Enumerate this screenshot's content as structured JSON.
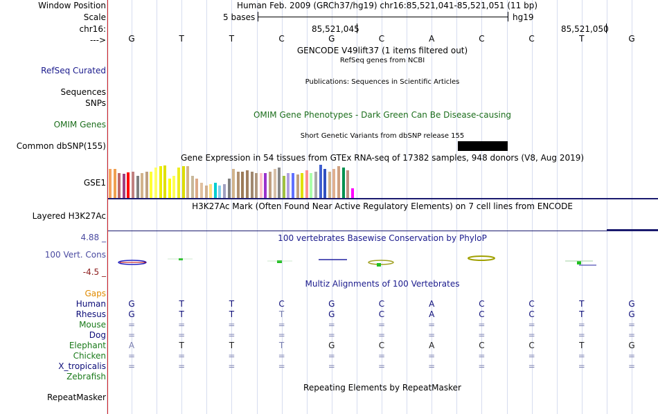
{
  "labels": {
    "window_position": "Window Position",
    "scale": "Scale",
    "chrom": "chr16:",
    "arrow": "--->",
    "refseq": "RefSeq Curated",
    "sequences": "Sequences",
    "snps": "SNPs",
    "omim": "OMIM Genes",
    "dbsnp": "Common dbSNP(155)",
    "gse1": "GSE1",
    "h3k27ac": "Layered H3K27Ac",
    "cons_max": "4.88 _",
    "cons_name": "100 Vert. Cons",
    "cons_min": "-4.5 _",
    "gaps": "Gaps",
    "repeatmasker": "RepeatMasker"
  },
  "species": [
    {
      "name": "Human",
      "color": "#0c0c78"
    },
    {
      "name": "Rhesus",
      "color": "#0c0c78"
    },
    {
      "name": "Mouse",
      "color": "#1a7a1a"
    },
    {
      "name": "Dog",
      "color": "#0c0c78"
    },
    {
      "name": "Elephant",
      "color": "#1a7a1a"
    },
    {
      "name": "Chicken",
      "color": "#1a7a1a"
    },
    {
      "name": "X_tropicalis",
      "color": "#0c0c78"
    },
    {
      "name": "Zebrafish",
      "color": "#1a7a1a"
    }
  ],
  "header": {
    "position_text": "Human Feb. 2009 (GRCh37/hg19)   chr16:85,521,041-85,521,051 (11 bp)",
    "scale_text": "5 bases",
    "assembly": "hg19",
    "coord_left": "85,521,045",
    "coord_right": "85,521,050"
  },
  "bases": [
    "G",
    "T",
    "T",
    "C",
    "G",
    "C",
    "A",
    "C",
    "C",
    "T",
    "G"
  ],
  "tracks": {
    "gencode": "GENCODE V49lift37 (1 items filtered out)",
    "refseq": "RefSeq genes from NCBI",
    "publications": "Publications: Sequences in Scientific Articles",
    "omim": "OMIM Gene Phenotypes - Dark Green Can Be Disease-causing",
    "dbsnp": "Short Genetic Variants from dbSNP release 155",
    "gtex": "Gene Expression in 54 tissues from GTEx RNA-seq of 17382 samples, 948 donors (V8, Aug 2019)",
    "h3k27ac": "H3K27Ac Mark (Often Found Near Active Regulatory Elements) on 7 cell lines from ENCODE",
    "phylop": "100 vertebrates Basewise Conservation by PhyloP",
    "multiz": "Multiz Alignments of 100 Vertebrates",
    "repeatmasker": "Repeating Elements by RepeatMasker"
  },
  "alignment": {
    "Human": [
      "G",
      "T",
      "T",
      "C",
      "G",
      "C",
      "A",
      "C",
      "C",
      "T",
      "G"
    ],
    "Rhesus": [
      "G",
      "T",
      "T",
      "T",
      "G",
      "C",
      "A",
      "C",
      "C",
      "T",
      "G"
    ],
    "Mouse": [
      "=",
      "=",
      "=",
      "=",
      "=",
      "=",
      "=",
      "=",
      "=",
      "=",
      "="
    ],
    "Dog": [
      "=",
      "=",
      "=",
      "=",
      "=",
      "=",
      "=",
      "=",
      "=",
      "=",
      "="
    ],
    "Elephant": [
      "A",
      "T",
      "T",
      "T",
      "G",
      "C",
      "A",
      "C",
      "C",
      "T",
      "G"
    ],
    "Chicken": [
      "=",
      "=",
      "=",
      "=",
      "=",
      "=",
      "=",
      "=",
      "=",
      "=",
      "="
    ],
    "X_tropicalis": [
      "=",
      "=",
      "=",
      "=",
      "=",
      "=",
      "=",
      "=",
      "=",
      "=",
      "="
    ],
    "Zebrafish": [
      "",
      "",
      "",
      "",
      "",
      "",
      "",
      "",
      "",
      "",
      ""
    ]
  },
  "gtex_values": [
    42,
    42,
    36,
    35,
    37,
    38,
    32,
    36,
    38,
    38,
    44,
    46,
    47,
    28,
    32,
    44,
    46,
    46,
    32,
    28,
    22,
    18,
    20,
    22,
    18,
    20,
    28,
    42,
    38,
    38,
    40,
    38,
    36,
    36,
    36,
    38,
    42,
    44,
    32,
    36,
    36,
    34,
    36,
    40,
    36,
    38,
    48,
    42,
    38,
    42,
    46,
    44,
    40,
    14
  ],
  "gtex_colors": [
    "#f4a460",
    "#f0a050",
    "#c06b6b",
    "#a04080",
    "#ff0000",
    "#c08080",
    "#808080",
    "#d2b48c",
    "#c0a080",
    "#ffff33",
    "#ffff66",
    "#eeee00",
    "#e0e000",
    "#ffff00",
    "#ffff55",
    "#eeee22",
    "#dddd00",
    "#d2b48c",
    "#c8b89a",
    "#ddaa88",
    "#e0c0a0",
    "#d0b090",
    "#ffe080",
    "#00ced1",
    "#87ceeb",
    "#a0a0c0",
    "#808080",
    "#d2b48c",
    "#b09070",
    "#9c7b58",
    "#a08060",
    "#a08870",
    "#b09880",
    "#ffc0cb",
    "#9932cc",
    "#c0a080",
    "#d8c0a8",
    "#888888",
    "#a0c040",
    "#b0a0e0",
    "#6070ff",
    "#c0a080",
    "#e0e000",
    "#ff9090",
    "#aaffaa",
    "#aaaaaa",
    "#4060d0",
    "#3050c0",
    "#d2b48c",
    "#e0b090",
    "#d0a080",
    "#009050",
    "#c09080",
    "#ff00ff"
  ],
  "colors": {
    "label_blue": "#1a1a8c",
    "omim_green": "#1c6e1c",
    "gaps_orange": "#e08a00",
    "cons_label": "#4a4aa0",
    "cons_min": "#8b1a1a",
    "divider": "#d62020",
    "grid": "#d6dcef"
  }
}
